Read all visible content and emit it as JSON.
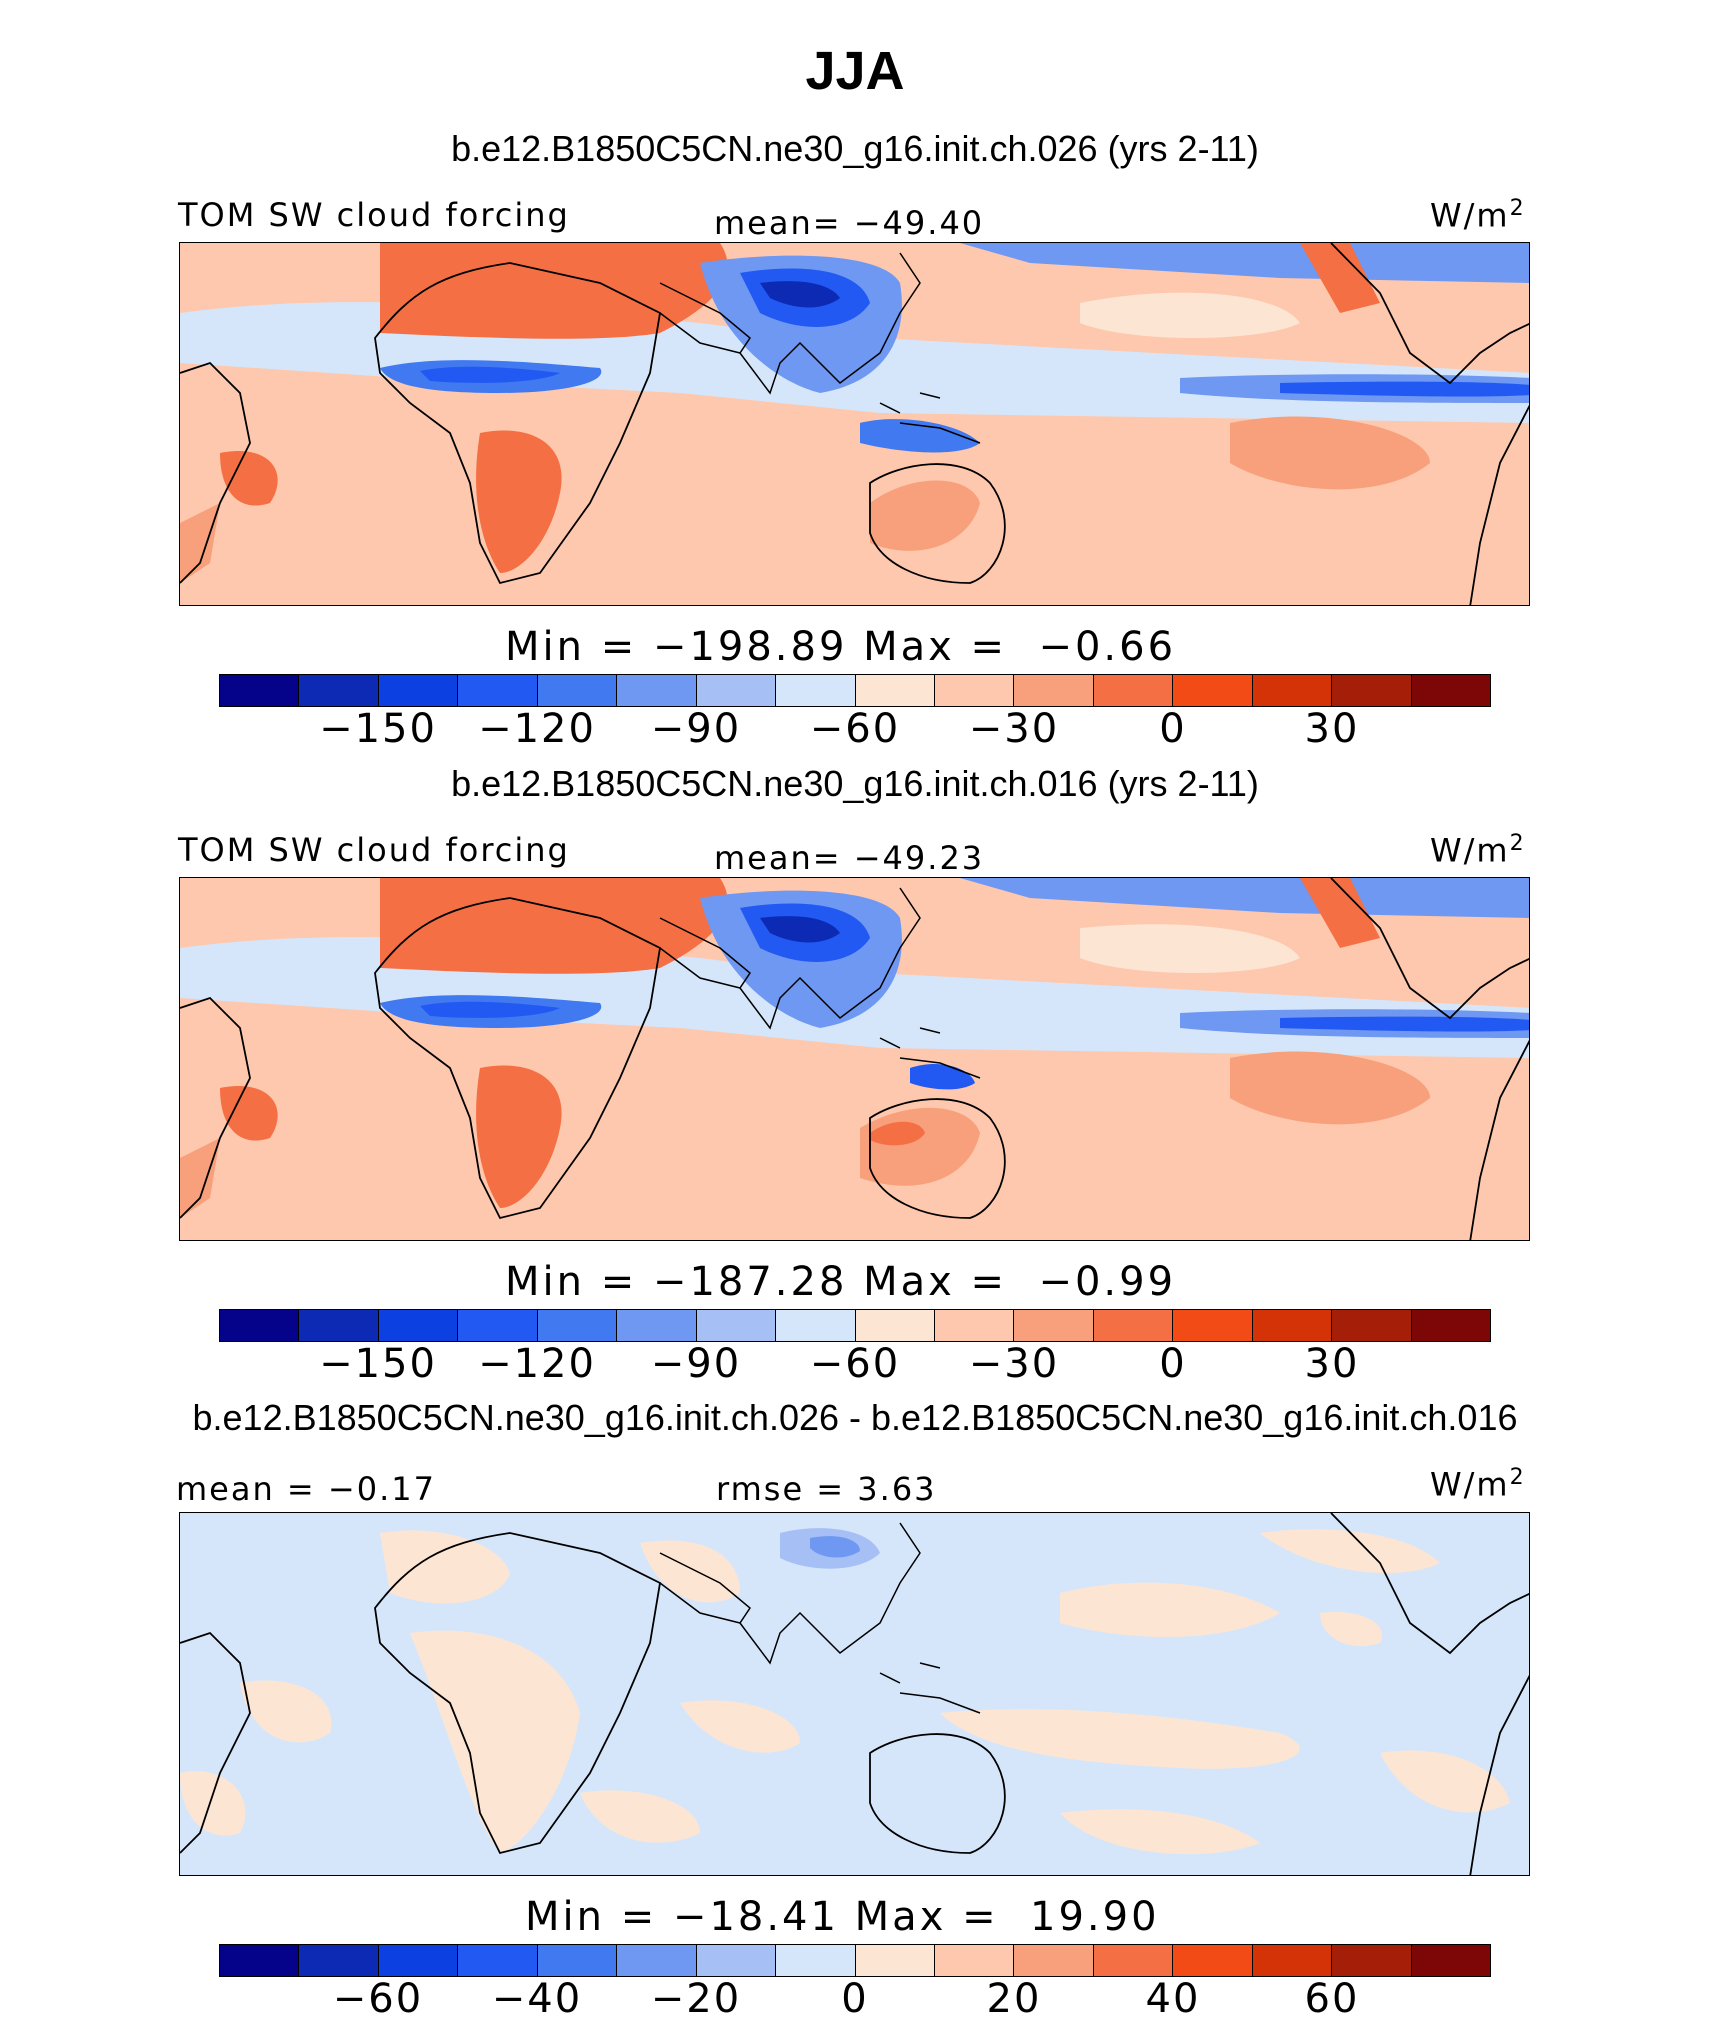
{
  "title": "JJA",
  "colors": {
    "palette": [
      "#04038a",
      "#0d2ab5",
      "#0d40e0",
      "#2159f2",
      "#4079f0",
      "#6e98f2",
      "#a6c0f5",
      "#d6e6fa",
      "#fde5d3",
      "#fdc8ad",
      "#f7a07b",
      "#f46f44",
      "#f24b16",
      "#d43308",
      "#a51e08",
      "#7d0707"
    ],
    "coast": "#000000"
  },
  "panels": [
    {
      "title": "b.e12.B1850C5CN.ne30_g16.init.ch.026 (yrs 2-11)",
      "left_label": "TOM SW cloud forcing",
      "center_label": "mean= −49.40",
      "units_label": "W/m",
      "units_sup": "2",
      "stats": "Min = −198.89 Max =  −0.66",
      "colorbar_ticks": [
        "−150",
        "−120",
        "−90",
        "−60",
        "−30",
        "0",
        "30"
      ]
    },
    {
      "title": "b.e12.B1850C5CN.ne30_g16.init.ch.016 (yrs 2-11)",
      "left_label": "TOM SW cloud forcing",
      "center_label": "mean= −49.23",
      "units_label": "W/m",
      "units_sup": "2",
      "stats": "Min = −187.28 Max =  −0.99",
      "colorbar_ticks": [
        "−150",
        "−120",
        "−90",
        "−60",
        "−30",
        "0",
        "30"
      ]
    },
    {
      "title": "b.e12.B1850C5CN.ne30_g16.init.ch.026 - b.e12.B1850C5CN.ne30_g16.init.ch.016",
      "left_label": "mean =  −0.17",
      "center_label": "rmse =    3.63",
      "units_label": "W/m",
      "units_sup": "2",
      "stats": "Min = −18.41 Max =  19.90",
      "colorbar_ticks": [
        "−60",
        "−40",
        "−20",
        "0",
        "20",
        "40",
        "60"
      ]
    }
  ]
}
